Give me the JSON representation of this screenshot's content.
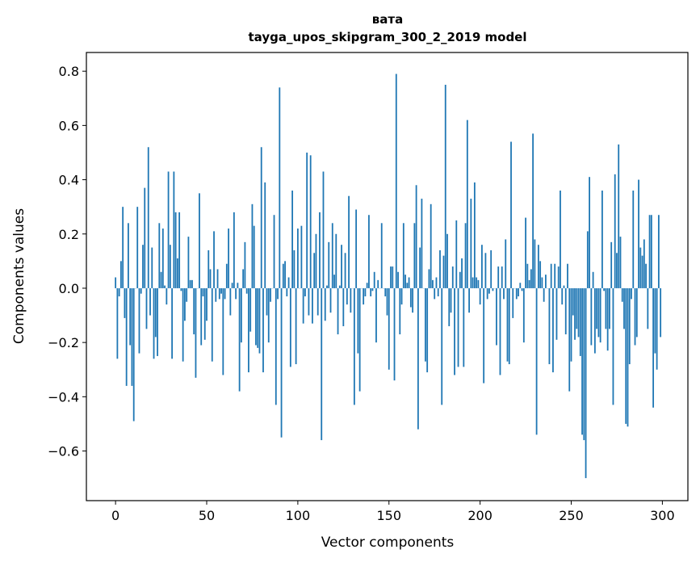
{
  "chart_data": {
    "type": "bar",
    "title": "вата",
    "subtitle": "tayga_upos_skipgram_300_2_2019 model",
    "xlabel": "Vector components",
    "ylabel": "Components values",
    "xlim": [
      -16,
      314
    ],
    "ylim": [
      -0.783,
      0.869
    ],
    "xticks": [
      0,
      50,
      100,
      150,
      200,
      250,
      300
    ],
    "xtick_labels": [
      "0",
      "50",
      "100",
      "150",
      "200",
      "250",
      "300"
    ],
    "yticks": [
      -0.6,
      -0.4,
      -0.2,
      0.0,
      0.2,
      0.4,
      0.6,
      0.8
    ],
    "ytick_labels": [
      "−0.6",
      "−0.4",
      "−0.2",
      "0.0",
      "0.2",
      "0.4",
      "0.6",
      "0.8"
    ],
    "grid": false,
    "color": "#1f77b4",
    "values": [
      0.04,
      -0.26,
      -0.03,
      0.1,
      0.3,
      -0.11,
      -0.36,
      0.24,
      -0.21,
      -0.36,
      -0.49,
      0.0,
      0.3,
      -0.24,
      -0.02,
      0.16,
      0.37,
      -0.15,
      0.52,
      -0.1,
      0.15,
      -0.26,
      -0.18,
      -0.25,
      0.24,
      0.06,
      0.22,
      0.01,
      -0.06,
      0.43,
      0.16,
      -0.26,
      0.43,
      0.28,
      0.11,
      0.28,
      -0.01,
      -0.27,
      -0.12,
      -0.05,
      0.19,
      0.03,
      0.03,
      -0.17,
      -0.33,
      0.0,
      0.35,
      -0.21,
      -0.03,
      -0.19,
      -0.12,
      0.14,
      0.07,
      -0.27,
      0.21,
      -0.05,
      0.07,
      -0.04,
      -0.02,
      -0.32,
      -0.04,
      0.09,
      0.22,
      -0.1,
      0.02,
      0.28,
      -0.04,
      0.02,
      -0.38,
      -0.2,
      0.07,
      0.17,
      -0.02,
      -0.31,
      -0.16,
      0.31,
      0.23,
      -0.21,
      -0.22,
      -0.24,
      0.52,
      -0.31,
      0.39,
      -0.1,
      -0.2,
      -0.05,
      0.0,
      0.27,
      -0.43,
      -0.04,
      0.74,
      -0.55,
      0.09,
      0.1,
      -0.03,
      0.04,
      -0.29,
      0.36,
      0.14,
      -0.28,
      0.22,
      0.0,
      0.23,
      -0.13,
      -0.03,
      0.5,
      -0.1,
      0.49,
      -0.13,
      0.13,
      0.2,
      -0.1,
      0.28,
      -0.56,
      0.43,
      -0.12,
      0.01,
      0.17,
      -0.09,
      0.24,
      0.05,
      0.2,
      -0.17,
      0.01,
      0.16,
      -0.14,
      0.13,
      -0.06,
      0.34,
      -0.09,
      0.0,
      -0.43,
      0.29,
      -0.24,
      -0.38,
      0.0,
      -0.06,
      -0.03,
      0.02,
      0.27,
      -0.03,
      -0.01,
      0.06,
      -0.2,
      0.03,
      0.0,
      0.24,
      0.0,
      -0.03,
      -0.1,
      -0.3,
      0.08,
      0.08,
      -0.34,
      0.79,
      0.06,
      -0.17,
      -0.06,
      0.24,
      0.05,
      0.02,
      0.04,
      -0.07,
      -0.09,
      0.24,
      0.38,
      -0.52,
      0.15,
      0.33,
      0.0,
      -0.27,
      -0.31,
      0.07,
      0.31,
      0.03,
      -0.04,
      0.04,
      -0.03,
      0.14,
      -0.43,
      0.12,
      0.75,
      0.2,
      -0.14,
      -0.09,
      0.08,
      -0.32,
      0.25,
      -0.29,
      0.06,
      0.11,
      -0.29,
      0.24,
      0.62,
      -0.09,
      0.33,
      0.04,
      0.39,
      0.04,
      0.03,
      -0.06,
      0.16,
      -0.35,
      0.13,
      -0.04,
      -0.02,
      0.14,
      -0.01,
      0.0,
      -0.21,
      0.08,
      -0.32,
      0.08,
      -0.04,
      0.18,
      -0.27,
      -0.28,
      0.54,
      -0.11,
      0.0,
      -0.04,
      -0.03,
      0.02,
      -0.01,
      -0.2,
      0.26,
      0.09,
      0.03,
      0.07,
      0.57,
      0.18,
      -0.54,
      0.16,
      0.1,
      0.04,
      -0.05,
      0.05,
      0.0,
      -0.28,
      0.09,
      -0.31,
      0.09,
      -0.19,
      0.08,
      0.36,
      -0.06,
      0.01,
      -0.17,
      0.09,
      -0.38,
      -0.27,
      -0.1,
      -0.19,
      -0.15,
      -0.18,
      -0.25,
      -0.54,
      -0.56,
      -0.7,
      0.21,
      0.41,
      -0.21,
      0.06,
      -0.24,
      -0.15,
      -0.18,
      -0.2,
      0.36,
      -0.01,
      -0.15,
      -0.23,
      -0.15,
      0.17,
      -0.43,
      0.42,
      0.13,
      0.53,
      0.19,
      -0.05,
      -0.15,
      -0.5,
      -0.51,
      -0.28,
      -0.04,
      0.36,
      -0.21,
      -0.18,
      0.4,
      0.15,
      0.12,
      0.18,
      0.09,
      -0.15,
      0.27,
      0.27,
      -0.44,
      -0.24,
      -0.3,
      0.27,
      -0.18
    ]
  }
}
